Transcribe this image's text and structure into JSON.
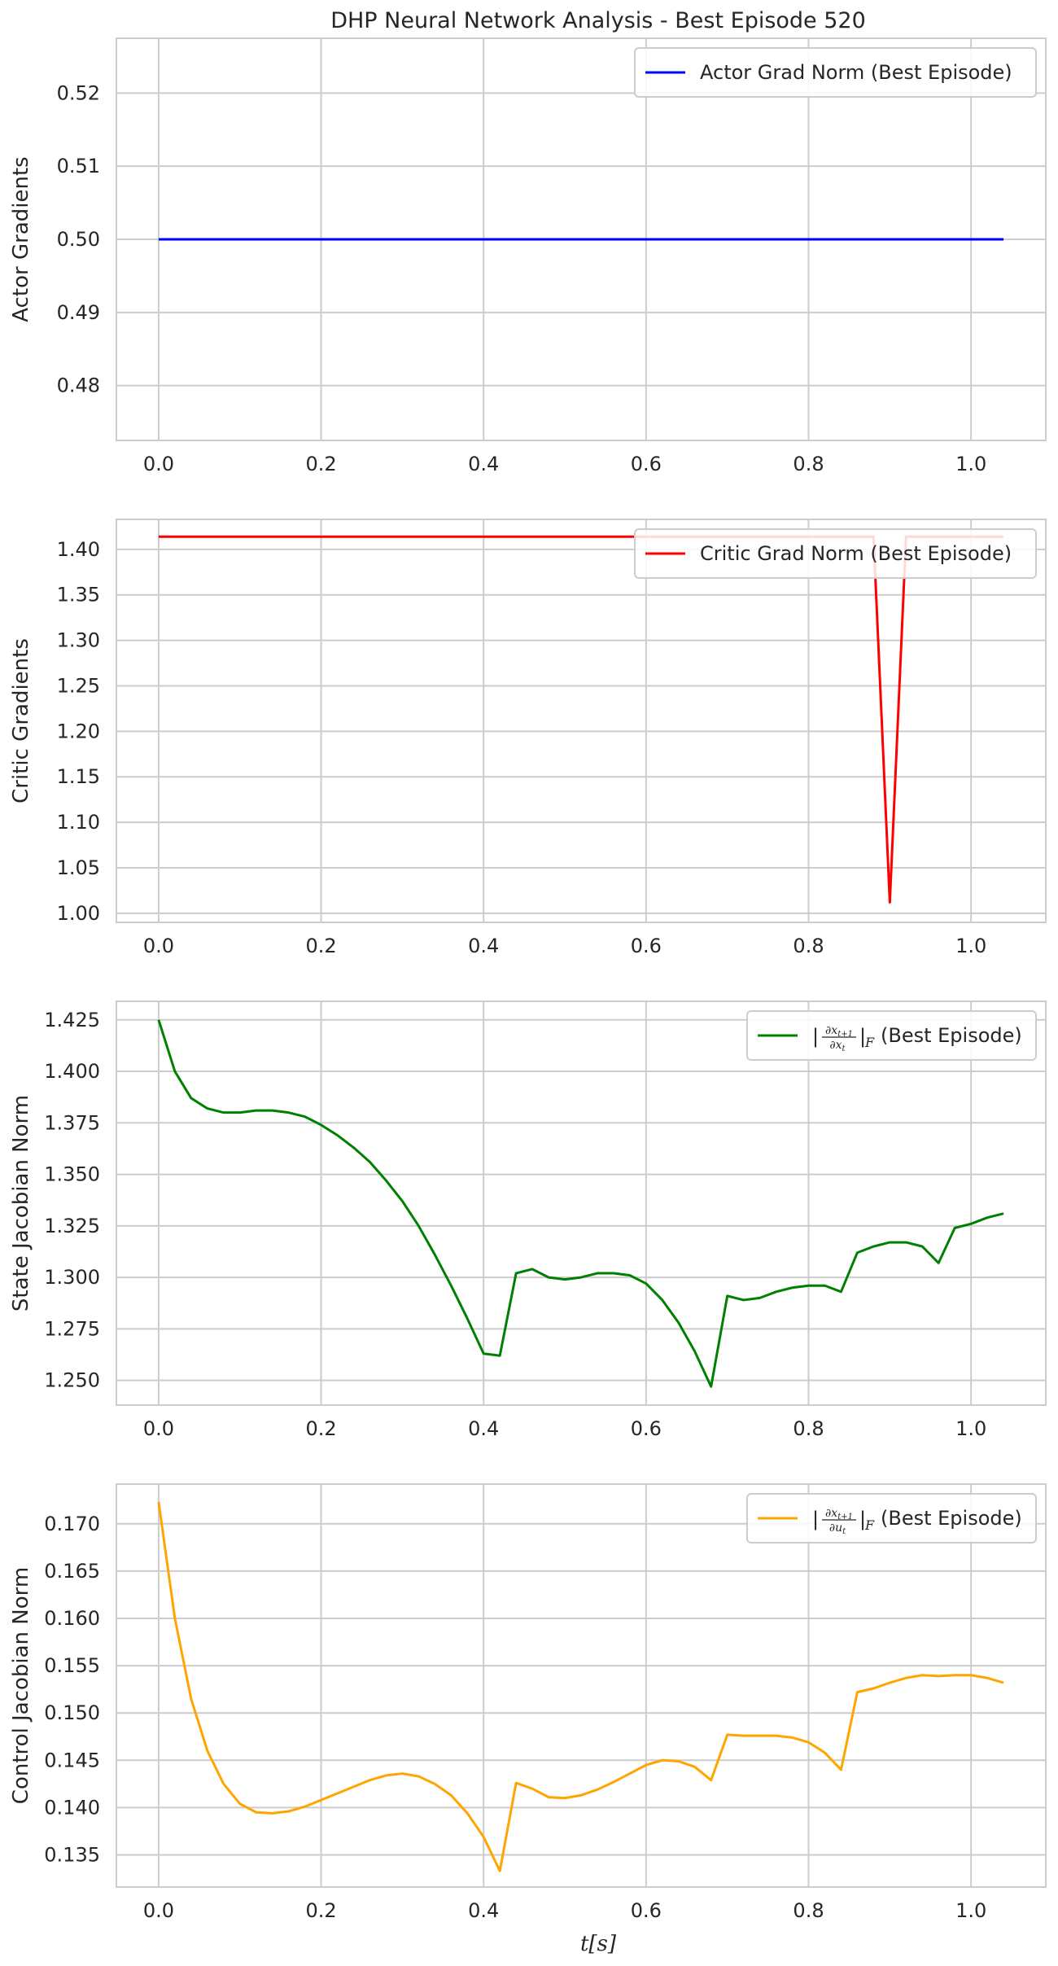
{
  "figure": {
    "title": "DHP Neural Network Analysis - Best Episode 520",
    "xlabel": "t[s]"
  },
  "chart_data": [
    {
      "type": "line",
      "title": "DHP Neural Network Analysis - Best Episode 520",
      "xlabel": "",
      "ylabel": "Actor Gradients",
      "color": "#0000ff",
      "legend": {
        "label": "Actor Grad Norm (Best Episode)",
        "position": "upper right"
      },
      "xlim": [
        -0.052,
        1.092
      ],
      "ylim": [
        0.4725,
        0.5275
      ],
      "xticks": [
        "0.0",
        "0.2",
        "0.4",
        "0.6",
        "0.8",
        "1.0"
      ],
      "yticks": [
        "0.48",
        "0.49",
        "0.50",
        "0.51",
        "0.52"
      ],
      "grid": true,
      "series": [
        {
          "name": "Actor Grad Norm (Best Episode)",
          "x": [
            0.0,
            1.04
          ],
          "y": [
            0.5,
            0.5
          ]
        }
      ]
    },
    {
      "type": "line",
      "xlabel": "",
      "ylabel": "Critic Gradients",
      "color": "#ff0000",
      "legend": {
        "label": "Critic Grad Norm (Best Episode)",
        "position": "upper right"
      },
      "xlim": [
        -0.052,
        1.092
      ],
      "ylim": [
        0.99,
        1.433
      ],
      "xticks": [
        "0.0",
        "0.2",
        "0.4",
        "0.6",
        "0.8",
        "1.0"
      ],
      "yticks": [
        "1.00",
        "1.05",
        "1.10",
        "1.15",
        "1.20",
        "1.25",
        "1.30",
        "1.35",
        "1.40"
      ],
      "grid": true,
      "series": [
        {
          "name": "Critic Grad Norm (Best Episode)",
          "x": [
            0.0,
            0.88,
            0.9,
            0.92,
            1.04
          ],
          "y": [
            1.414,
            1.414,
            1.012,
            1.414,
            1.414
          ]
        }
      ]
    },
    {
      "type": "line",
      "xlabel": "",
      "ylabel": "State Jacobian Norm",
      "color": "#008000",
      "legend": {
        "label": "(Best Episode)",
        "math": "state_jacobian",
        "position": "upper right"
      },
      "xlim": [
        -0.052,
        1.092
      ],
      "ylim": [
        1.238,
        1.434
      ],
      "xticks": [
        "0.0",
        "0.2",
        "0.4",
        "0.6",
        "0.8",
        "1.0"
      ],
      "yticks": [
        "1.250",
        "1.275",
        "1.300",
        "1.325",
        "1.350",
        "1.375",
        "1.400",
        "1.425"
      ],
      "grid": true,
      "series": [
        {
          "name": "State Jacobian (Best Episode)",
          "x": [
            0.0,
            0.02,
            0.04,
            0.06,
            0.08,
            0.1,
            0.12,
            0.14,
            0.16,
            0.18,
            0.2,
            0.22,
            0.24,
            0.26,
            0.28,
            0.3,
            0.32,
            0.34,
            0.36,
            0.38,
            0.4,
            0.42,
            0.44,
            0.46,
            0.48,
            0.5,
            0.52,
            0.54,
            0.56,
            0.58,
            0.6,
            0.62,
            0.64,
            0.66,
            0.68,
            0.7,
            0.72,
            0.74,
            0.76,
            0.78,
            0.8,
            0.82,
            0.84,
            0.86,
            0.88,
            0.9,
            0.92,
            0.94,
            0.96,
            0.98,
            1.0,
            1.02,
            1.04
          ],
          "y": [
            1.425,
            1.4,
            1.387,
            1.382,
            1.38,
            1.38,
            1.381,
            1.381,
            1.38,
            1.378,
            1.374,
            1.369,
            1.363,
            1.356,
            1.347,
            1.337,
            1.325,
            1.311,
            1.296,
            1.28,
            1.263,
            1.262,
            1.302,
            1.304,
            1.3,
            1.299,
            1.3,
            1.302,
            1.302,
            1.301,
            1.297,
            1.289,
            1.278,
            1.264,
            1.247,
            1.291,
            1.289,
            1.29,
            1.293,
            1.295,
            1.296,
            1.296,
            1.293,
            1.312,
            1.315,
            1.317,
            1.317,
            1.315,
            1.307,
            1.324,
            1.326,
            1.329,
            1.331
          ]
        }
      ]
    },
    {
      "type": "line",
      "xlabel": "t[s]",
      "ylabel": "Control Jacobian Norm",
      "color": "#ffa500",
      "legend": {
        "label": "(Best Episode)",
        "math": "control_jacobian",
        "position": "upper right"
      },
      "xlim": [
        -0.052,
        1.092
      ],
      "ylim": [
        0.1316,
        0.1742
      ],
      "xticks": [
        "0.0",
        "0.2",
        "0.4",
        "0.6",
        "0.8",
        "1.0"
      ],
      "yticks": [
        "0.135",
        "0.140",
        "0.145",
        "0.150",
        "0.155",
        "0.160",
        "0.165",
        "0.170"
      ],
      "grid": true,
      "series": [
        {
          "name": "Control Jacobian (Best Episode)",
          "x": [
            0.0,
            0.02,
            0.04,
            0.06,
            0.08,
            0.1,
            0.12,
            0.14,
            0.16,
            0.18,
            0.2,
            0.22,
            0.24,
            0.26,
            0.28,
            0.3,
            0.32,
            0.34,
            0.36,
            0.38,
            0.4,
            0.42,
            0.44,
            0.46,
            0.48,
            0.5,
            0.52,
            0.54,
            0.56,
            0.58,
            0.6,
            0.62,
            0.64,
            0.66,
            0.68,
            0.7,
            0.72,
            0.74,
            0.76,
            0.78,
            0.8,
            0.82,
            0.84,
            0.86,
            0.88,
            0.9,
            0.92,
            0.94,
            0.96,
            0.98,
            1.0,
            1.02,
            1.04
          ],
          "y": [
            0.1723,
            0.16,
            0.1515,
            0.146,
            0.1425,
            0.1404,
            0.1395,
            0.1394,
            0.1396,
            0.1401,
            0.1408,
            0.1415,
            0.1422,
            0.1429,
            0.1434,
            0.1436,
            0.1433,
            0.1425,
            0.1413,
            0.1394,
            0.1369,
            0.1333,
            0.1426,
            0.142,
            0.1411,
            0.141,
            0.1413,
            0.1419,
            0.1427,
            0.1436,
            0.1445,
            0.145,
            0.1449,
            0.1443,
            0.1429,
            0.1477,
            0.1476,
            0.1476,
            0.1476,
            0.1474,
            0.1469,
            0.1458,
            0.144,
            0.1522,
            0.1526,
            0.1532,
            0.1537,
            0.154,
            0.1539,
            0.154,
            0.154,
            0.1537,
            0.1532
          ]
        }
      ]
    }
  ]
}
